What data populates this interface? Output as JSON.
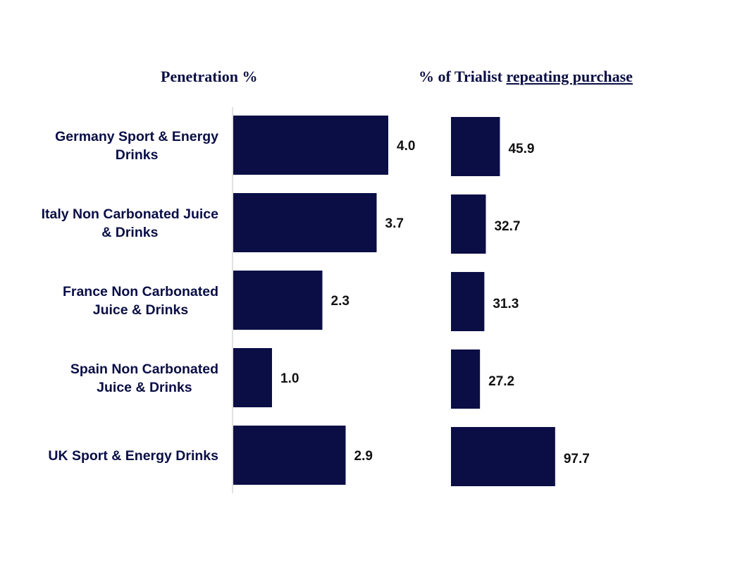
{
  "colors": {
    "bar": "#0a0e45",
    "text": "#0a0e45",
    "label": "#111111",
    "axis": "#d9d9d9"
  },
  "titles": {
    "left": "Penetration %",
    "right_prefix": "% of Trialist ",
    "right_underlined": "repeating purchase"
  },
  "chart_data": [
    {
      "type": "bar",
      "orientation": "horizontal",
      "title": "Penetration %",
      "categories": [
        [
          "Germany Sport & Energy",
          "Drinks"
        ],
        [
          "Italy Non Carbonated Juice",
          "& Drinks"
        ],
        [
          "France Non Carbonated",
          "Juice & Drinks"
        ],
        [
          "Spain Non Carbonated",
          "Juice & Drinks"
        ],
        [
          "UK Sport & Energy Drinks"
        ]
      ],
      "values": [
        4.0,
        3.7,
        2.3,
        1.0,
        2.9
      ],
      "value_labels": [
        "4.0",
        "3.7",
        "2.3",
        "1.0",
        "2.9"
      ],
      "xlim": [
        0,
        4.6
      ]
    },
    {
      "type": "bar",
      "orientation": "horizontal",
      "title": "% of Trialist repeating purchase",
      "categories": [
        [
          "Germany Sport & Energy",
          "Drinks"
        ],
        [
          "Italy Non Carbonated Juice",
          "& Drinks"
        ],
        [
          "France Non Carbonated",
          "Juice & Drinks"
        ],
        [
          "Spain Non Carbonated",
          "Juice & Drinks"
        ],
        [
          "UK Sport & Energy Drinks"
        ]
      ],
      "values": [
        45.9,
        32.7,
        31.3,
        27.2,
        97.7
      ],
      "value_labels": [
        "45.9",
        "32.7",
        "31.3",
        "27.2",
        "97.7"
      ],
      "xlim": [
        0,
        230
      ]
    }
  ]
}
